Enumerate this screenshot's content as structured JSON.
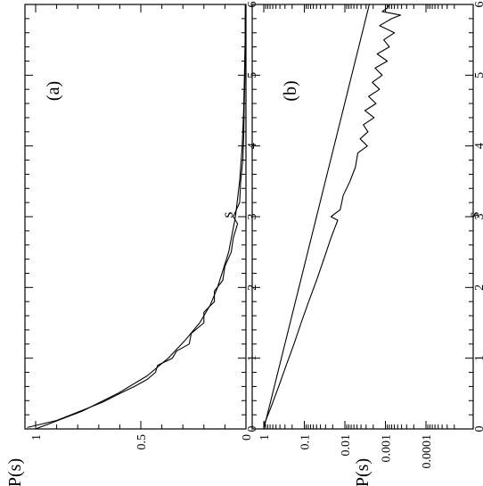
{
  "chart_data": [
    {
      "type": "line",
      "panel_label": "(a)",
      "xlabel": "s",
      "ylabel": "P(s)",
      "xlim": [
        0,
        6
      ],
      "ylim": [
        0,
        1.1
      ],
      "xscale": "linear",
      "yscale": "linear",
      "x_ticks": [
        "0",
        "1",
        "2",
        "3",
        "4",
        "5",
        "6"
      ],
      "y_ticks": [
        "0",
        "0.5",
        "1"
      ],
      "grid": false,
      "series": [
        {
          "style": "smooth",
          "x": [
            0,
            0.25,
            0.5,
            0.75,
            1.0,
            1.25,
            1.5,
            1.75,
            2.0,
            2.5,
            3.0,
            3.5,
            4.0,
            4.5,
            5.0,
            5.5,
            6.0
          ],
          "y": [
            1.0,
            0.78,
            0.61,
            0.47,
            0.37,
            0.29,
            0.22,
            0.17,
            0.135,
            0.082,
            0.05,
            0.03,
            0.018,
            0.011,
            0.007,
            0.004,
            0.0025
          ]
        },
        {
          "style": "noisy",
          "x": [
            0.02,
            0.12,
            0.25,
            0.38,
            0.5,
            0.6,
            0.7,
            0.8,
            0.9,
            1.0,
            1.1,
            1.2,
            1.35,
            1.5,
            1.65,
            1.8,
            1.95,
            2.1,
            2.3,
            2.5,
            2.7,
            2.9,
            3.0,
            3.2,
            3.5,
            3.8,
            4.2,
            4.6,
            5.0,
            5.5,
            6.0
          ],
          "y": [
            1.04,
            0.9,
            0.79,
            0.68,
            0.6,
            0.53,
            0.47,
            0.43,
            0.42,
            0.35,
            0.33,
            0.27,
            0.26,
            0.2,
            0.2,
            0.15,
            0.15,
            0.11,
            0.1,
            0.07,
            0.06,
            0.04,
            0.06,
            0.03,
            0.025,
            0.015,
            0.01,
            0.008,
            0.005,
            0.004,
            0.003
          ]
        }
      ]
    },
    {
      "type": "line",
      "panel_label": "(b)",
      "xlabel": "s",
      "ylabel": "P(s)",
      "xlim": [
        0,
        6
      ],
      "ylim": [
        1e-05,
        1.5
      ],
      "xscale": "linear",
      "yscale": "log",
      "x_ticks": [
        "0",
        "1",
        "2",
        "3",
        "4",
        "5",
        "6"
      ],
      "y_ticks": [
        "1",
        "0.1",
        "0.01",
        "0.001",
        "0.0001"
      ],
      "grid": false,
      "series": [
        {
          "style": "straight",
          "x": [
            0,
            6
          ],
          "y": [
            1.0,
            0.0025
          ]
        },
        {
          "style": "noisy",
          "x": [
            0.05,
            0.3,
            0.6,
            0.9,
            1.2,
            1.5,
            1.8,
            2.1,
            2.4,
            2.7,
            2.95,
            3.0,
            3.1,
            3.3,
            3.5,
            3.7,
            3.9,
            4.0,
            4.1,
            4.2,
            4.3,
            4.4,
            4.5,
            4.6,
            4.7,
            4.8,
            4.9,
            5.0,
            5.1,
            5.2,
            5.3,
            5.4,
            5.5,
            5.6,
            5.7,
            5.8,
            5.85,
            5.9,
            5.95,
            6.0
          ],
          "y": [
            1.0,
            0.67,
            0.43,
            0.28,
            0.18,
            0.12,
            0.078,
            0.05,
            0.033,
            0.022,
            0.015,
            0.022,
            0.013,
            0.011,
            0.0075,
            0.0055,
            0.0048,
            0.0028,
            0.0042,
            0.0027,
            0.0035,
            0.0019,
            0.0032,
            0.0017,
            0.0026,
            0.0014,
            0.0021,
            0.0012,
            0.0018,
            0.0009,
            0.0016,
            0.0008,
            0.0011,
            0.0006,
            0.0014,
            0.0007,
            0.00042,
            0.0012,
            0.0009,
            0.0008
          ]
        }
      ]
    }
  ]
}
